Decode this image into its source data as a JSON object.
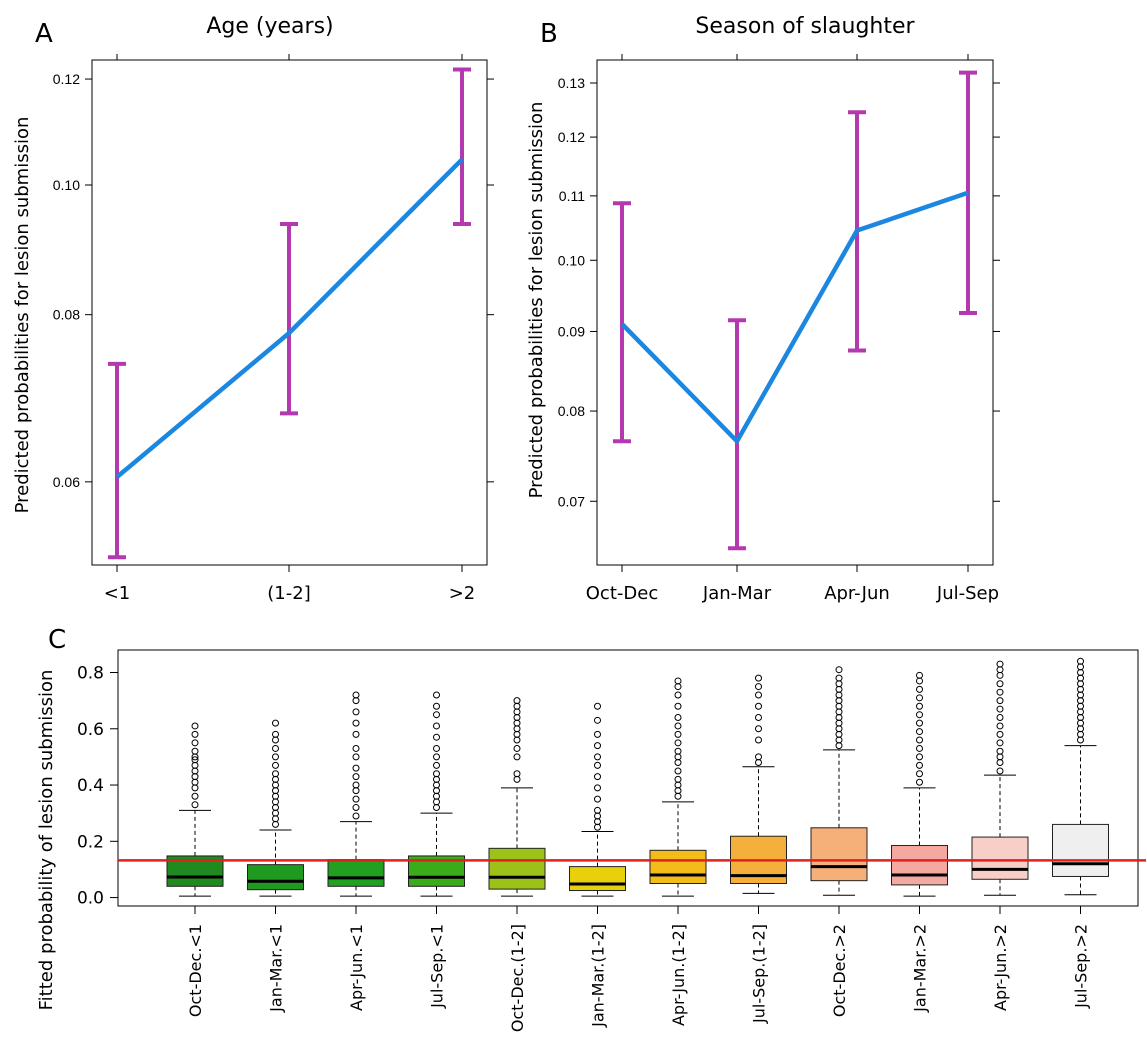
{
  "chart_data": [
    {
      "panel": "A",
      "type": "line",
      "title": "Age (years)",
      "ylabel": "Predicted probabilities for lesion submission",
      "xlabel": "",
      "categories": [
        "<1",
        "(1-2]",
        ">2"
      ],
      "y_scale": "log",
      "ylim": [
        0.052,
        0.124
      ],
      "yticks": [
        0.06,
        0.08,
        0.1,
        0.12
      ],
      "ytick_labels": [
        "0.06",
        "0.08",
        "0.10",
        "0.12"
      ],
      "series": [
        {
          "values": [
            0.0605,
            0.0775,
            0.1045
          ],
          "lower": [
            0.0527,
            0.0675,
            0.0935
          ],
          "upper": [
            0.0735,
            0.0935,
            0.122
          ]
        }
      ],
      "line_color": "#1b87e0",
      "errorbar_color": "#b23aae"
    },
    {
      "panel": "B",
      "type": "line",
      "title": "Season of slaughter",
      "ylabel": "Predicted probabilities for lesion submission",
      "xlabel": "",
      "categories": [
        "Oct-Dec",
        "Jan-Mar",
        "Apr-Jun",
        "Jul-Sep"
      ],
      "y_scale": "log",
      "ylim": [
        0.0637,
        0.1345
      ],
      "yticks": [
        0.07,
        0.08,
        0.09,
        0.1,
        0.11,
        0.12,
        0.13
      ],
      "ytick_labels": [
        "0.07",
        "0.08",
        "0.09",
        "0.10",
        "0.11",
        "0.12",
        "0.13"
      ],
      "series": [
        {
          "values": [
            0.091,
            0.0765,
            0.1045,
            0.1105
          ],
          "lower": [
            0.0765,
            0.0653,
            0.0875,
            0.0925
          ],
          "upper": [
            0.1088,
            0.0915,
            0.1245,
            0.132
          ]
        }
      ],
      "line_color": "#1b87e0",
      "errorbar_color": "#b23aae"
    },
    {
      "panel": "C",
      "type": "box",
      "title": "",
      "ylabel": "Fitted probability of lesion submission",
      "xlabel": "",
      "ylim": [
        -0.03,
        0.88
      ],
      "yticks": [
        0.0,
        0.2,
        0.4,
        0.6,
        0.8
      ],
      "ytick_labels": [
        "0.0",
        "0.2",
        "0.4",
        "0.6",
        "0.8"
      ],
      "reference_line": 0.132,
      "reference_line_color": "#e0201a",
      "boxes": [
        {
          "label": "Oct-Dec.<1",
          "min": 0.005,
          "q1": 0.04,
          "median": 0.073,
          "q3": 0.148,
          "whisker_high": 0.31,
          "outliers": [
            0.33,
            0.36,
            0.39,
            0.41,
            0.43,
            0.45,
            0.47,
            0.49,
            0.5,
            0.52,
            0.55,
            0.58,
            0.61
          ],
          "color": "#1f8a1f"
        },
        {
          "label": "Jan-Mar.<1",
          "min": 0.005,
          "q1": 0.028,
          "median": 0.058,
          "q3": 0.117,
          "whisker_high": 0.24,
          "outliers": [
            0.26,
            0.28,
            0.3,
            0.32,
            0.34,
            0.36,
            0.38,
            0.4,
            0.42,
            0.44,
            0.47,
            0.5,
            0.53,
            0.56,
            0.58,
            0.62
          ],
          "color": "#1f9a1f"
        },
        {
          "label": "Apr-Jun.<1",
          "min": 0.005,
          "q1": 0.04,
          "median": 0.07,
          "q3": 0.135,
          "whisker_high": 0.27,
          "outliers": [
            0.29,
            0.32,
            0.35,
            0.38,
            0.4,
            0.43,
            0.46,
            0.5,
            0.53,
            0.58,
            0.62,
            0.66,
            0.7,
            0.72
          ],
          "color": "#22a022"
        },
        {
          "label": "Jul-Sep.<1",
          "min": 0.005,
          "q1": 0.04,
          "median": 0.072,
          "q3": 0.148,
          "whisker_high": 0.3,
          "outliers": [
            0.32,
            0.34,
            0.36,
            0.38,
            0.4,
            0.42,
            0.44,
            0.47,
            0.5,
            0.53,
            0.57,
            0.61,
            0.65,
            0.68,
            0.72
          ],
          "color": "#3aab1a"
        },
        {
          "label": "Oct-Dec.(1-2]",
          "min": 0.005,
          "q1": 0.03,
          "median": 0.072,
          "q3": 0.175,
          "whisker_high": 0.39,
          "outliers": [
            0.42,
            0.44,
            0.5,
            0.53,
            0.56,
            0.58,
            0.6,
            0.62,
            0.64,
            0.66,
            0.68,
            0.7
          ],
          "color": "#9cc21a"
        },
        {
          "label": "Jan-Mar.(1-2]",
          "min": 0.005,
          "q1": 0.025,
          "median": 0.048,
          "q3": 0.11,
          "whisker_high": 0.235,
          "outliers": [
            0.25,
            0.27,
            0.29,
            0.31,
            0.35,
            0.39,
            0.43,
            0.47,
            0.5,
            0.54,
            0.58,
            0.63,
            0.68
          ],
          "color": "#e8d00a"
        },
        {
          "label": "Apr-Jun.(1-2]",
          "min": 0.005,
          "q1": 0.05,
          "median": 0.08,
          "q3": 0.168,
          "whisker_high": 0.34,
          "outliers": [
            0.36,
            0.38,
            0.4,
            0.42,
            0.45,
            0.48,
            0.5,
            0.52,
            0.55,
            0.58,
            0.61,
            0.64,
            0.68,
            0.72,
            0.75,
            0.77
          ],
          "color": "#f2bc1a"
        },
        {
          "label": "Jul-Sep.(1-2]",
          "min": 0.015,
          "q1": 0.05,
          "median": 0.078,
          "q3": 0.218,
          "whisker_high": 0.465,
          "outliers": [
            0.48,
            0.5,
            0.56,
            0.6,
            0.64,
            0.68,
            0.72,
            0.75,
            0.78
          ],
          "color": "#f5b03c"
        },
        {
          "label": "Oct-Dec.>2",
          "min": 0.008,
          "q1": 0.06,
          "median": 0.11,
          "q3": 0.248,
          "whisker_high": 0.525,
          "outliers": [
            0.54,
            0.56,
            0.58,
            0.6,
            0.62,
            0.64,
            0.66,
            0.68,
            0.7,
            0.72,
            0.74,
            0.76,
            0.78,
            0.81
          ],
          "color": "#f5b07a"
        },
        {
          "label": "Jan-Mar.>2",
          "min": 0.005,
          "q1": 0.045,
          "median": 0.08,
          "q3": 0.185,
          "whisker_high": 0.39,
          "outliers": [
            0.41,
            0.44,
            0.47,
            0.5,
            0.53,
            0.56,
            0.59,
            0.62,
            0.65,
            0.68,
            0.71,
            0.74,
            0.77,
            0.79
          ],
          "color": "#f5a8a0"
        },
        {
          "label": "Apr-Jun.>2",
          "min": 0.008,
          "q1": 0.065,
          "median": 0.1,
          "q3": 0.215,
          "whisker_high": 0.435,
          "outliers": [
            0.45,
            0.48,
            0.5,
            0.52,
            0.55,
            0.58,
            0.61,
            0.64,
            0.67,
            0.7,
            0.73,
            0.76,
            0.79,
            0.81,
            0.83
          ],
          "color": "#f8cfc6"
        },
        {
          "label": "Jul-Sep.>2",
          "min": 0.01,
          "q1": 0.075,
          "median": 0.12,
          "q3": 0.26,
          "whisker_high": 0.54,
          "outliers": [
            0.56,
            0.58,
            0.6,
            0.62,
            0.64,
            0.66,
            0.68,
            0.7,
            0.72,
            0.74,
            0.76,
            0.78,
            0.8,
            0.82,
            0.84
          ],
          "color": "#efefef"
        }
      ]
    }
  ],
  "panel_letters": {
    "a": "A",
    "b": "B",
    "c": "C"
  }
}
